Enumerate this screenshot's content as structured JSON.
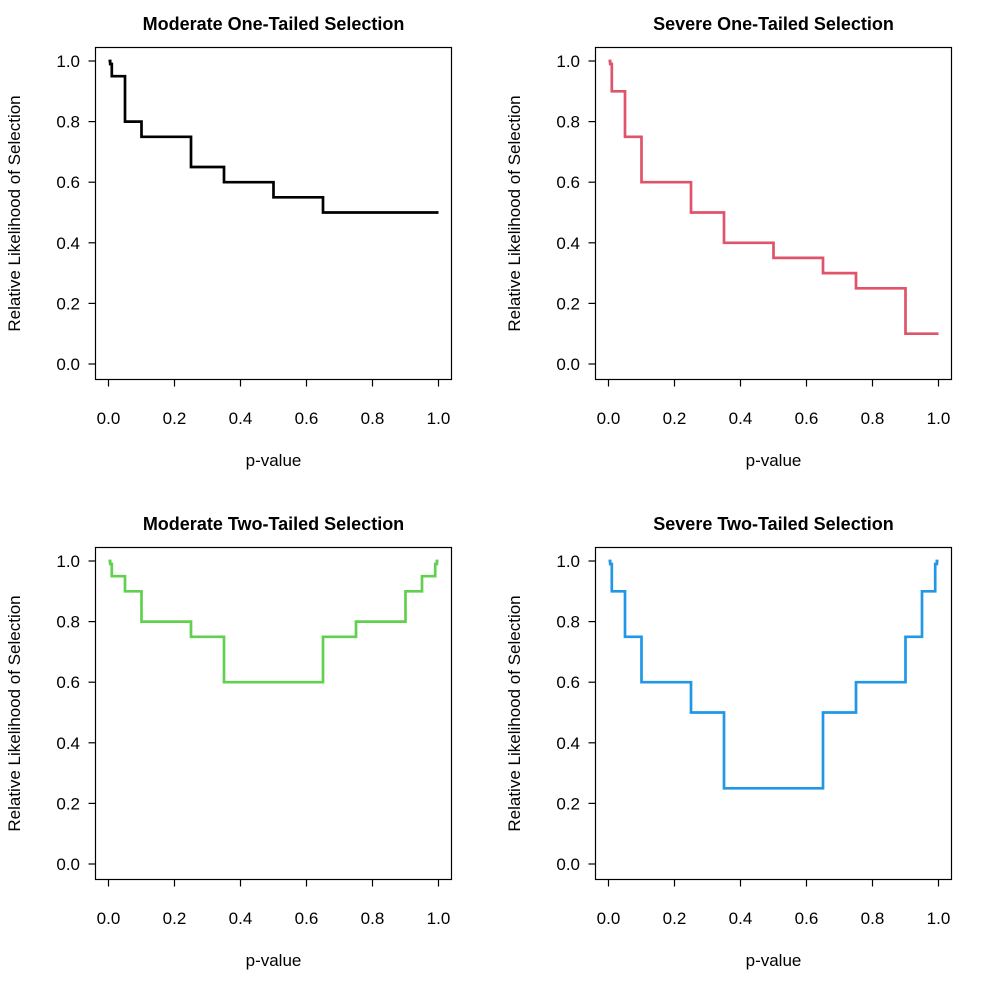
{
  "figure": {
    "background": "#ffffff",
    "layout": "2x2-grid",
    "shared": {
      "xlabel": "p-value",
      "ylabel": "Relative Likelihood of Selection",
      "x_tick_labels": [
        "0.0",
        "0.2",
        "0.4",
        "0.6",
        "0.8",
        "1.0"
      ],
      "y_tick_labels": [
        "0.0",
        "0.2",
        "0.4",
        "0.6",
        "0.8",
        "1.0"
      ],
      "x_tick_values": [
        0.0,
        0.2,
        0.4,
        0.6,
        0.8,
        1.0
      ],
      "y_tick_values": [
        0.0,
        0.2,
        0.4,
        0.6,
        0.8,
        1.0
      ],
      "grid": "off",
      "legend": "none"
    }
  },
  "chart_data": [
    {
      "type": "line",
      "line_style": "step",
      "title": "Moderate One-Tailed Selection",
      "xlabel": "p-value",
      "ylabel": "Relative Likelihood of Selection",
      "color": "#000000",
      "xlim": [
        0,
        1
      ],
      "ylim": [
        0,
        1
      ],
      "x_tick_values": [
        0.0,
        0.2,
        0.4,
        0.6,
        0.8,
        1.0
      ],
      "y_tick_values": [
        0.0,
        0.2,
        0.4,
        0.6,
        0.8,
        1.0
      ],
      "x_tick_labels": [
        "0.0",
        "0.2",
        "0.4",
        "0.6",
        "0.8",
        "1.0"
      ],
      "y_tick_labels": [
        "0.0",
        "0.2",
        "0.4",
        "0.6",
        "0.8",
        "1.0"
      ],
      "p_cutpoints": [
        0,
        0.005,
        0.01,
        0.05,
        0.1,
        0.25,
        0.35,
        0.5,
        0.65,
        0.75,
        0.9,
        0.95,
        0.99,
        0.995,
        1
      ],
      "weights": [
        1.0,
        0.99,
        0.95,
        0.8,
        0.75,
        0.65,
        0.6,
        0.55,
        0.5,
        0.5,
        0.5,
        0.5,
        0.5,
        0.5
      ]
    },
    {
      "type": "line",
      "line_style": "step",
      "title": "Severe One-Tailed Selection",
      "xlabel": "p-value",
      "ylabel": "Relative Likelihood of Selection",
      "color": "#DF536B",
      "xlim": [
        0,
        1
      ],
      "ylim": [
        0,
        1
      ],
      "x_tick_values": [
        0.0,
        0.2,
        0.4,
        0.6,
        0.8,
        1.0
      ],
      "y_tick_values": [
        0.0,
        0.2,
        0.4,
        0.6,
        0.8,
        1.0
      ],
      "x_tick_labels": [
        "0.0",
        "0.2",
        "0.4",
        "0.6",
        "0.8",
        "1.0"
      ],
      "y_tick_labels": [
        "0.0",
        "0.2",
        "0.4",
        "0.6",
        "0.8",
        "1.0"
      ],
      "p_cutpoints": [
        0,
        0.005,
        0.01,
        0.05,
        0.1,
        0.25,
        0.35,
        0.5,
        0.65,
        0.75,
        0.9,
        0.95,
        0.99,
        0.995,
        1
      ],
      "weights": [
        1.0,
        0.99,
        0.9,
        0.75,
        0.6,
        0.5,
        0.4,
        0.35,
        0.3,
        0.25,
        0.1,
        0.1,
        0.1,
        0.1
      ]
    },
    {
      "type": "line",
      "line_style": "step",
      "title": "Moderate Two-Tailed Selection",
      "xlabel": "p-value",
      "ylabel": "Relative Likelihood of Selection",
      "color": "#61D04F",
      "xlim": [
        0,
        1
      ],
      "ylim": [
        0,
        1
      ],
      "x_tick_values": [
        0.0,
        0.2,
        0.4,
        0.6,
        0.8,
        1.0
      ],
      "y_tick_values": [
        0.0,
        0.2,
        0.4,
        0.6,
        0.8,
        1.0
      ],
      "x_tick_labels": [
        "0.0",
        "0.2",
        "0.4",
        "0.6",
        "0.8",
        "1.0"
      ],
      "y_tick_labels": [
        "0.0",
        "0.2",
        "0.4",
        "0.6",
        "0.8",
        "1.0"
      ],
      "p_cutpoints": [
        0,
        0.005,
        0.01,
        0.05,
        0.1,
        0.25,
        0.35,
        0.5,
        0.65,
        0.75,
        0.9,
        0.95,
        0.99,
        0.995,
        1
      ],
      "weights": [
        1.0,
        0.99,
        0.95,
        0.9,
        0.8,
        0.75,
        0.6,
        0.6,
        0.75,
        0.8,
        0.9,
        0.95,
        0.99,
        1.0
      ]
    },
    {
      "type": "line",
      "line_style": "step",
      "title": "Severe Two-Tailed Selection",
      "xlabel": "p-value",
      "ylabel": "Relative Likelihood of Selection",
      "color": "#2297E6",
      "xlim": [
        0,
        1
      ],
      "ylim": [
        0,
        1
      ],
      "x_tick_values": [
        0.0,
        0.2,
        0.4,
        0.6,
        0.8,
        1.0
      ],
      "y_tick_values": [
        0.0,
        0.2,
        0.4,
        0.6,
        0.8,
        1.0
      ],
      "x_tick_labels": [
        "0.0",
        "0.2",
        "0.4",
        "0.6",
        "0.8",
        "1.0"
      ],
      "y_tick_labels": [
        "0.0",
        "0.2",
        "0.4",
        "0.6",
        "0.8",
        "1.0"
      ],
      "p_cutpoints": [
        0,
        0.005,
        0.01,
        0.05,
        0.1,
        0.25,
        0.35,
        0.5,
        0.65,
        0.75,
        0.9,
        0.95,
        0.99,
        0.995,
        1
      ],
      "weights": [
        1.0,
        0.99,
        0.9,
        0.75,
        0.6,
        0.5,
        0.25,
        0.25,
        0.5,
        0.6,
        0.75,
        0.9,
        0.99,
        1.0
      ]
    }
  ]
}
